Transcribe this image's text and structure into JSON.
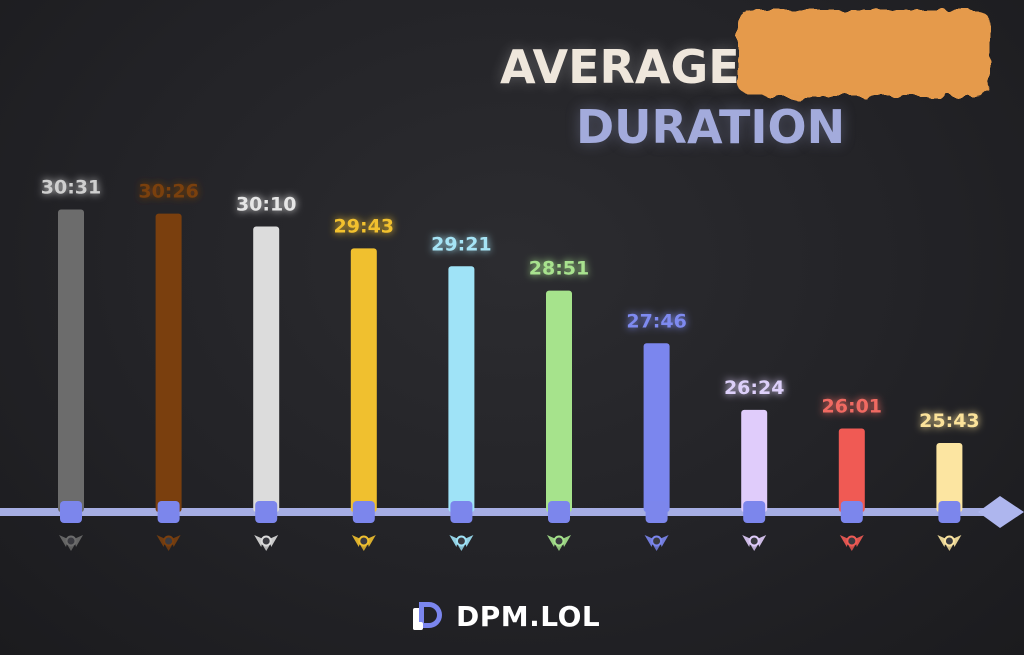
{
  "title": {
    "line1": "AVERAGE GAME",
    "line2": "DURATION"
  },
  "brand": {
    "name": "DPM.LOL",
    "logo": "dpm-logo-icon"
  },
  "chart_data": {
    "type": "bar",
    "title": "AVERAGE GAME DURATION",
    "xlabel": "",
    "ylabel": "",
    "y_unit": "minutes",
    "ylim": [
      0,
      31
    ],
    "grid": false,
    "legend": "none",
    "categories": [
      "Iron",
      "Bronze",
      "Silver",
      "Gold",
      "Platinum",
      "Emerald",
      "Diamond",
      "Master",
      "Grandmaster",
      "Challenger"
    ],
    "category_icons": [
      "iron-rank-icon",
      "bronze-rank-icon",
      "silver-rank-icon",
      "gold-rank-icon",
      "platinum-rank-icon",
      "emerald-rank-icon",
      "diamond-rank-icon",
      "master-rank-icon",
      "grandmaster-rank-icon",
      "challenger-rank-icon"
    ],
    "labels": [
      "30:31",
      "30:26",
      "30:10",
      "29:43",
      "29:21",
      "28:51",
      "27:46",
      "26:24",
      "26:01",
      "25:43"
    ],
    "values": [
      30.517,
      30.433,
      30.167,
      29.717,
      29.35,
      28.85,
      27.767,
      26.4,
      26.017,
      25.717
    ],
    "colors": [
      "#6c6c6c",
      "#7a3f0e",
      "#dcdcdc",
      "#f0c02f",
      "#9fe3f7",
      "#a6e38c",
      "#7b86ee",
      "#e0ccfb",
      "#f05a54",
      "#fce5a1"
    ],
    "label_colors": [
      "#cfcfcf",
      "#7a3f0e",
      "#e6e6e6",
      "#f2c12e",
      "#a6e4f6",
      "#a8e28e",
      "#7e8af0",
      "#ddd0fa",
      "#f06a62",
      "#fbe29a"
    ],
    "axis_color": "#aeb6ee",
    "marker_color": "#7c86ec"
  }
}
